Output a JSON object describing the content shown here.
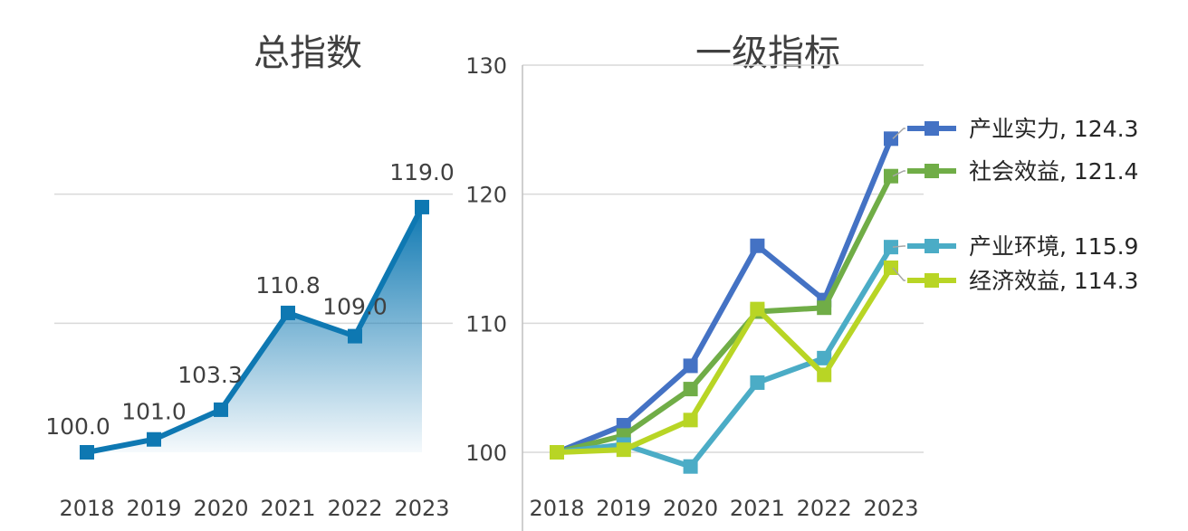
{
  "chart_data": [
    {
      "type": "area",
      "title": "总指数",
      "categories": [
        "2018",
        "2019",
        "2020",
        "2021",
        "2022",
        "2023"
      ],
      "series": [
        {
          "name": "",
          "values": [
            100.0,
            101.0,
            103.3,
            110.8,
            109.0,
            119.0
          ],
          "color": "#0E78B2"
        }
      ],
      "data_labels": [
        "100.0",
        "101.0",
        "103.3",
        "110.8",
        "109.0",
        "119.0"
      ],
      "ylim": [
        100,
        130
      ],
      "grid": true
    },
    {
      "type": "line",
      "title": "一级指标",
      "categories": [
        "2018",
        "2019",
        "2020",
        "2021",
        "2022",
        "2023"
      ],
      "yticks": [
        "100",
        "110",
        "120",
        "130"
      ],
      "ylim": [
        100,
        130
      ],
      "grid": true,
      "series": [
        {
          "name": "产业实力",
          "label": "产业实力, 124.3",
          "color": "#4472C4",
          "values": [
            100.0,
            102.1,
            106.7,
            116.0,
            111.8,
            124.3
          ]
        },
        {
          "name": "社会效益",
          "label": "社会效益, 121.4",
          "color": "#70AD47",
          "values": [
            100.0,
            101.3,
            104.9,
            110.9,
            111.2,
            121.4
          ]
        },
        {
          "name": "产业环境",
          "label": "产业环境, 115.9",
          "color": "#4BACC6",
          "values": [
            100.0,
            100.6,
            98.9,
            105.4,
            107.3,
            115.9
          ]
        },
        {
          "name": "经济效益",
          "label": "经济效益, 114.3",
          "color": "#B8D525",
          "values": [
            100.0,
            100.2,
            102.5,
            111.1,
            106.0,
            114.3
          ]
        }
      ]
    }
  ]
}
